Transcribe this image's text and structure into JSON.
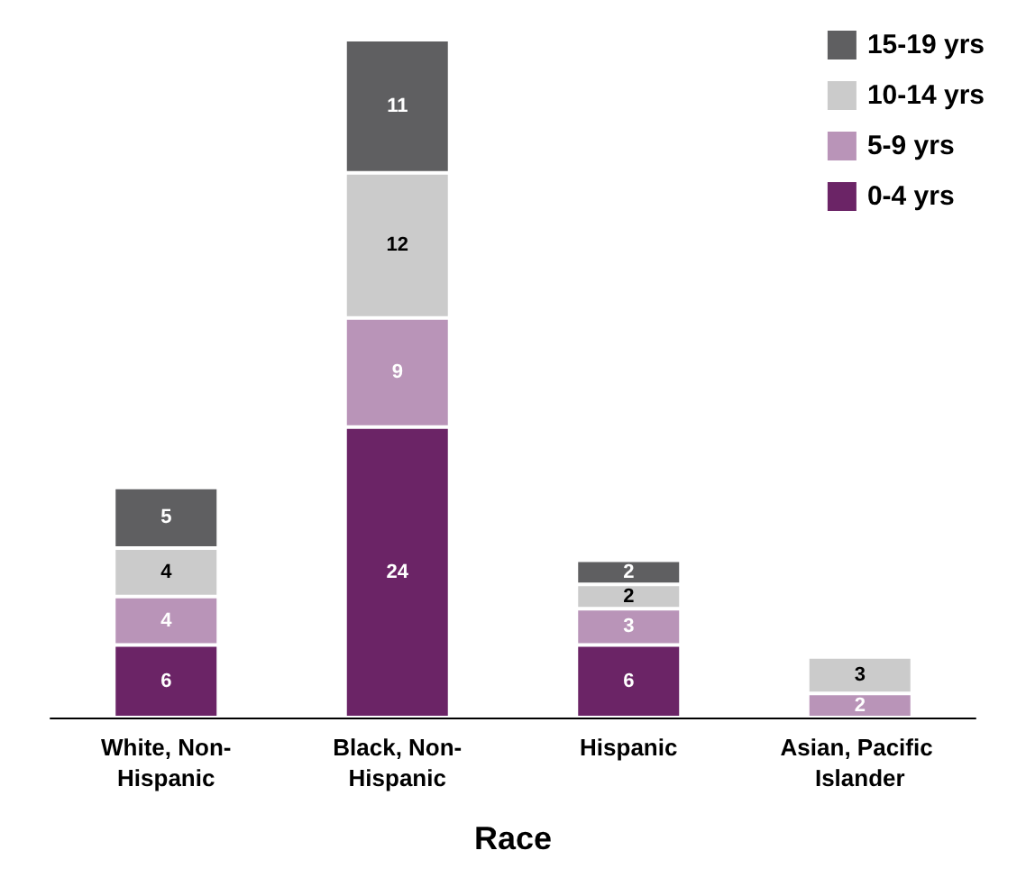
{
  "chart_data": {
    "type": "bar",
    "stacked": true,
    "xlabel": "Race",
    "categories": [
      "White, Non-Hispanic",
      "Black, Non-Hispanic",
      "Hispanic",
      "Asian, Pacific Islander"
    ],
    "series": [
      {
        "name": "0-4 yrs",
        "color": "#6b2466",
        "values": [
          6,
          24,
          6,
          null
        ]
      },
      {
        "name": "5-9 yrs",
        "color": "#b994b8",
        "values": [
          4,
          9,
          3,
          2
        ]
      },
      {
        "name": "10-14 yrs",
        "color": "#cbcbcb",
        "values": [
          4,
          12,
          2,
          3
        ]
      },
      {
        "name": "15-19 yrs",
        "color": "#5f5f61",
        "values": [
          5,
          11,
          2,
          null
        ]
      }
    ],
    "data_labels": true,
    "legend": "top right",
    "grid": false
  }
}
